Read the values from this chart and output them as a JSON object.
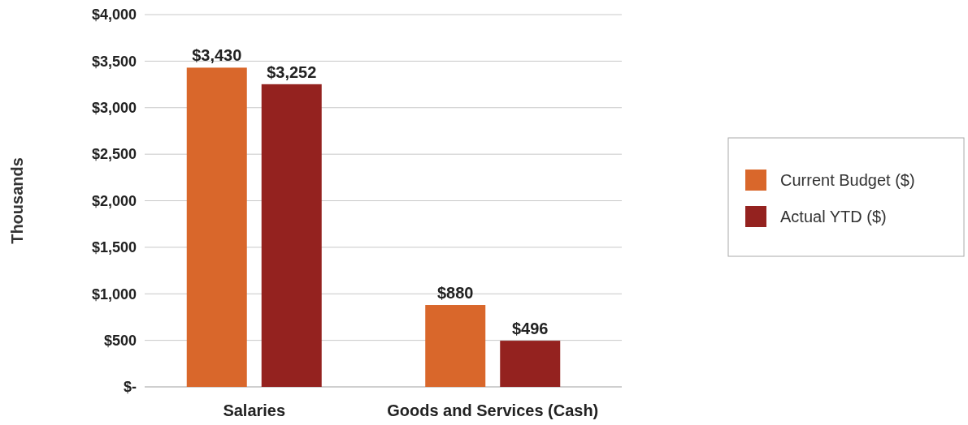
{
  "chart_data": {
    "type": "bar",
    "ylabel": "Thousands",
    "categories": [
      "Salaries",
      "Goods and Services (Cash)"
    ],
    "series": [
      {
        "name": "Current Budget ($)",
        "color": "#d9672b",
        "values": [
          3430,
          880
        ],
        "value_labels": [
          "$3,430",
          "$880"
        ]
      },
      {
        "name": "Actual YTD ($)",
        "color": "#94221f",
        "values": [
          3252,
          496
        ],
        "value_labels": [
          "$3,252",
          "$496"
        ]
      }
    ],
    "ylim": [
      0,
      4000
    ],
    "yticks": [
      {
        "value": 0,
        "label": "$-"
      },
      {
        "value": 500,
        "label": "$500"
      },
      {
        "value": 1000,
        "label": "$1,000"
      },
      {
        "value": 1500,
        "label": "$1,500"
      },
      {
        "value": 2000,
        "label": "$2,000"
      },
      {
        "value": 2500,
        "label": "$2,500"
      },
      {
        "value": 3000,
        "label": "$3,000"
      },
      {
        "value": 3500,
        "label": "$3,500"
      },
      {
        "value": 4000,
        "label": "$4,000"
      }
    ],
    "grid": "y",
    "legend": "right"
  }
}
